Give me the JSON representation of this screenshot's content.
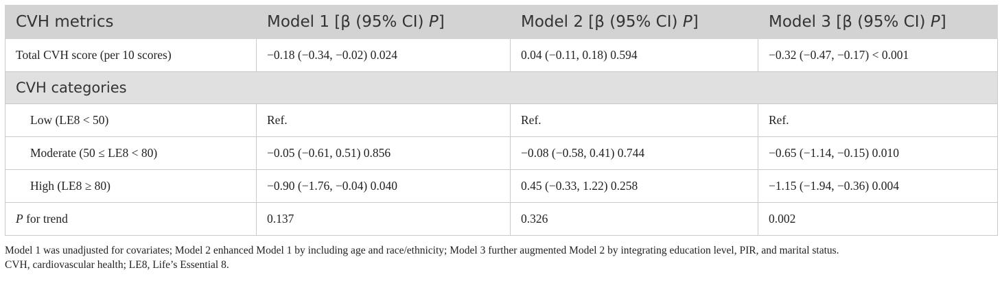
{
  "header": {
    "col1": "CVH metrics",
    "col2": {
      "prefix": "Model 1 [β (95% CI) ",
      "p": "P",
      "suffix": "]"
    },
    "col3": {
      "prefix": "Model 2 [β (95% CI) ",
      "p": "P",
      "suffix": "]"
    },
    "col4": {
      "prefix": "Model 3 [β (95% CI) ",
      "p": "P",
      "suffix": "]"
    }
  },
  "rows": {
    "total": {
      "label": "Total CVH score (per 10 scores)",
      "m1": "−0.18 (−0.34, −0.02) 0.024",
      "m2": "0.04 (−0.11, 0.18) 0.594",
      "m3": "−0.32 (−0.47, −0.17) < 0.001"
    },
    "section_label": "CVH categories",
    "low": {
      "label": "Low (LE8 < 50)",
      "m1": "Ref.",
      "m2": "Ref.",
      "m3": "Ref."
    },
    "moderate": {
      "label": "Moderate (50 ≤ LE8 < 80)",
      "m1": "−0.05 (−0.61, 0.51) 0.856",
      "m2": "−0.08 (−0.58, 0.41) 0.744",
      "m3": "−0.65 (−1.14, −0.15) 0.010"
    },
    "high": {
      "label": "High (LE8 ≥ 80)",
      "m1": "−0.90 (−1.76, −0.04) 0.040",
      "m2": "0.45 (−0.33, 1.22) 0.258",
      "m3": "−1.15 (−1.94, −0.36) 0.004"
    },
    "trend": {
      "label_p": "P",
      "label_rest": " for trend",
      "m1": "0.137",
      "m2": "0.326",
      "m3": "0.002"
    }
  },
  "footnote": {
    "line1": "Model 1 was unadjusted for covariates; Model 2 enhanced Model 1 by including age and race/ethnicity; Model 3 further augmented Model 2 by integrating education level, PIR, and marital status.",
    "line2": "CVH, cardiovascular health; LE8, Life’s Essential 8."
  }
}
